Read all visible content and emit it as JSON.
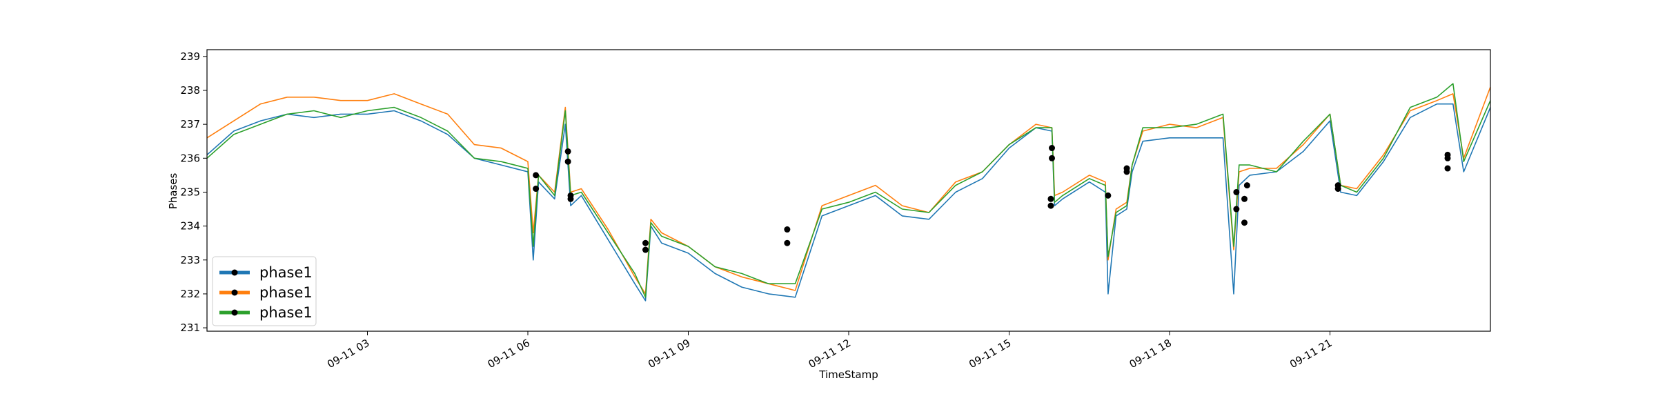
{
  "chart_data": {
    "type": "line",
    "title": "",
    "xlabel": "TimeStamp",
    "ylabel": "Phases",
    "x_range_hours": [
      0,
      24
    ],
    "ylim": [
      230.9,
      239.2
    ],
    "y_ticks": [
      231,
      232,
      233,
      234,
      235,
      236,
      237,
      238,
      239
    ],
    "x_ticks": [
      {
        "hour": 3,
        "label": "09-11 03"
      },
      {
        "hour": 6,
        "label": "09-11 06"
      },
      {
        "hour": 9,
        "label": "09-11 09"
      },
      {
        "hour": 12,
        "label": "09-11 12"
      },
      {
        "hour": 15,
        "label": "09-11 15"
      },
      {
        "hour": 18,
        "label": "09-11 18"
      },
      {
        "hour": 21,
        "label": "09-11 21"
      }
    ],
    "grid": false,
    "legend_position": "lower-left",
    "series": [
      {
        "name": "phase1",
        "color": "#1f77b4",
        "x": [
          0,
          0.5,
          1,
          1.5,
          2,
          2.5,
          3,
          3.5,
          4,
          4.5,
          5,
          5.5,
          6,
          6.1,
          6.2,
          6.5,
          6.7,
          6.8,
          7,
          7.5,
          8,
          8.2,
          8.3,
          8.5,
          9,
          9.5,
          10,
          10.5,
          11,
          11.5,
          12,
          12.5,
          13,
          13.5,
          14,
          14.5,
          15,
          15.5,
          15.8,
          15.85,
          16,
          16.5,
          16.8,
          16.85,
          17,
          17.2,
          17.3,
          17.5,
          18,
          18.5,
          19,
          19.2,
          19.3,
          19.5,
          20,
          20.5,
          21,
          21.2,
          21.5,
          22,
          22.5,
          23,
          23.3,
          23.5,
          24
        ],
        "y": [
          236.1,
          236.8,
          237.1,
          237.3,
          237.2,
          237.3,
          237.3,
          237.4,
          237.1,
          236.7,
          236.0,
          235.8,
          235.6,
          233.0,
          235.3,
          234.8,
          237.0,
          234.6,
          234.9,
          233.6,
          232.3,
          231.8,
          234.0,
          233.5,
          233.2,
          232.6,
          232.2,
          232.0,
          231.9,
          234.3,
          234.6,
          234.9,
          234.3,
          234.2,
          235.0,
          235.4,
          236.3,
          236.9,
          236.8,
          234.6,
          234.8,
          235.3,
          235.0,
          232.0,
          234.3,
          234.5,
          235.6,
          236.5,
          236.6,
          236.6,
          236.6,
          232.0,
          235.2,
          235.5,
          235.6,
          236.2,
          237.1,
          235.0,
          234.9,
          235.9,
          237.2,
          237.6,
          237.6,
          235.6,
          237.5
        ]
      },
      {
        "name": "phase1",
        "color": "#ff7f0e",
        "x": [
          0,
          0.5,
          1,
          1.5,
          2,
          2.5,
          3,
          3.5,
          4,
          4.5,
          5,
          5.5,
          6,
          6.1,
          6.2,
          6.5,
          6.7,
          6.8,
          7,
          7.5,
          8,
          8.2,
          8.3,
          8.5,
          9,
          9.5,
          10,
          10.5,
          11,
          11.5,
          12,
          12.5,
          13,
          13.5,
          14,
          14.5,
          15,
          15.5,
          15.8,
          15.85,
          16,
          16.5,
          16.8,
          16.85,
          17,
          17.2,
          17.3,
          17.5,
          18,
          18.5,
          19,
          19.2,
          19.3,
          19.5,
          20,
          20.5,
          21,
          21.2,
          21.5,
          22,
          22.5,
          23,
          23.3,
          23.5,
          24
        ],
        "y": [
          236.6,
          237.1,
          237.6,
          237.8,
          237.8,
          237.7,
          237.7,
          237.9,
          237.6,
          237.3,
          236.4,
          236.3,
          235.9,
          233.8,
          235.5,
          235.0,
          237.5,
          235.0,
          235.1,
          233.9,
          232.5,
          232.0,
          234.2,
          233.8,
          233.4,
          232.8,
          232.5,
          232.3,
          232.1,
          234.6,
          234.9,
          235.2,
          234.6,
          234.4,
          235.3,
          235.6,
          236.4,
          237.0,
          236.9,
          234.9,
          235.0,
          235.5,
          235.3,
          233.0,
          234.5,
          234.7,
          235.8,
          236.8,
          237.0,
          236.9,
          237.2,
          233.3,
          235.6,
          235.7,
          235.7,
          236.4,
          237.3,
          235.2,
          235.1,
          236.1,
          237.4,
          237.7,
          237.9,
          236.0,
          238.1
        ]
      },
      {
        "name": "phase1",
        "color": "#2ca02c",
        "x": [
          0,
          0.5,
          1,
          1.5,
          2,
          2.5,
          3,
          3.5,
          4,
          4.5,
          5,
          5.5,
          6,
          6.1,
          6.2,
          6.5,
          6.7,
          6.8,
          7,
          7.5,
          8,
          8.2,
          8.3,
          8.5,
          9,
          9.5,
          10,
          10.5,
          11,
          11.5,
          12,
          12.5,
          13,
          13.5,
          14,
          14.5,
          15,
          15.5,
          15.8,
          15.85,
          16,
          16.5,
          16.8,
          16.85,
          17,
          17.2,
          17.3,
          17.5,
          18,
          18.5,
          19,
          19.2,
          19.3,
          19.5,
          20,
          20.5,
          21,
          21.2,
          21.5,
          22,
          22.5,
          23,
          23.3,
          23.5,
          24
        ],
        "y": [
          236.0,
          236.7,
          237.0,
          237.3,
          237.4,
          237.2,
          237.4,
          237.5,
          237.2,
          236.8,
          236.0,
          235.9,
          235.7,
          233.4,
          235.5,
          234.9,
          237.4,
          234.9,
          235.0,
          233.8,
          232.6,
          231.9,
          234.1,
          233.7,
          233.4,
          232.8,
          232.6,
          232.3,
          232.3,
          234.5,
          234.7,
          235.0,
          234.5,
          234.4,
          235.2,
          235.6,
          236.4,
          236.9,
          236.9,
          234.7,
          234.9,
          235.4,
          235.2,
          233.1,
          234.4,
          234.6,
          235.8,
          236.9,
          236.9,
          237.0,
          237.3,
          233.4,
          235.8,
          235.8,
          235.6,
          236.5,
          237.3,
          235.2,
          235.0,
          236.0,
          237.5,
          237.8,
          238.2,
          235.9,
          237.7
        ]
      }
    ],
    "markers": {
      "color": "#000000",
      "points": [
        {
          "hour": 6.15,
          "y": 235.5
        },
        {
          "hour": 6.15,
          "y": 235.1
        },
        {
          "hour": 6.75,
          "y": 236.2
        },
        {
          "hour": 6.75,
          "y": 235.9
        },
        {
          "hour": 6.8,
          "y": 234.9
        },
        {
          "hour": 6.8,
          "y": 234.8
        },
        {
          "hour": 8.2,
          "y": 233.5
        },
        {
          "hour": 8.2,
          "y": 233.3
        },
        {
          "hour": 10.85,
          "y": 233.9
        },
        {
          "hour": 10.85,
          "y": 233.5
        },
        {
          "hour": 15.8,
          "y": 236.3
        },
        {
          "hour": 15.8,
          "y": 236.0
        },
        {
          "hour": 15.78,
          "y": 234.8
        },
        {
          "hour": 15.78,
          "y": 234.6
        },
        {
          "hour": 16.85,
          "y": 234.9
        },
        {
          "hour": 17.2,
          "y": 235.7
        },
        {
          "hour": 17.2,
          "y": 235.6
        },
        {
          "hour": 19.25,
          "y": 235.0
        },
        {
          "hour": 19.25,
          "y": 234.5
        },
        {
          "hour": 19.4,
          "y": 234.8
        },
        {
          "hour": 19.4,
          "y": 234.1
        },
        {
          "hour": 19.45,
          "y": 235.2
        },
        {
          "hour": 21.15,
          "y": 235.2
        },
        {
          "hour": 21.15,
          "y": 235.1
        },
        {
          "hour": 23.2,
          "y": 236.1
        },
        {
          "hour": 23.2,
          "y": 236.0
        },
        {
          "hour": 23.2,
          "y": 235.7
        }
      ]
    }
  }
}
